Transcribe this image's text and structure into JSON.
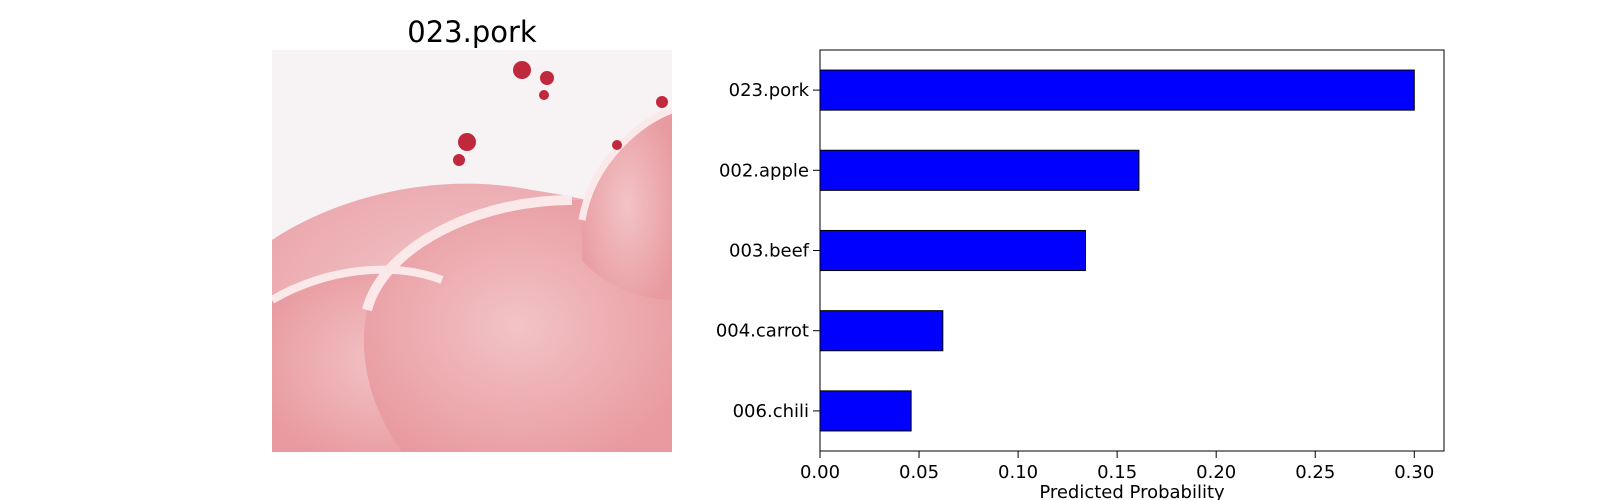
{
  "image_panel": {
    "title": "023.pork",
    "photo": {
      "kind": "food photo",
      "subject": "pork",
      "colors": {
        "background": "#f7f3f5",
        "meat_light": "#f2c3c6",
        "meat_mid": "#e89aa0",
        "fat": "#fbe9ea",
        "red_bits": "#c0283c",
        "board": "#b06a3e"
      }
    }
  },
  "chart_data": {
    "type": "bar",
    "orientation": "horizontal",
    "categories": [
      "023.pork",
      "002.apple",
      "003.beef",
      "004.carrot",
      "006.chili"
    ],
    "values": [
      0.3,
      0.161,
      0.134,
      0.062,
      0.046
    ],
    "title": "",
    "xlabel": "Predicted Probability",
    "ylabel": "",
    "xlim": [
      0,
      0.315
    ],
    "xticks": [
      0.0,
      0.05,
      0.1,
      0.15,
      0.2,
      0.25,
      0.3
    ],
    "xtick_labels": [
      "0.00",
      "0.05",
      "0.10",
      "0.15",
      "0.20",
      "0.25",
      "0.30"
    ],
    "bar_color": "#0000ff",
    "bar_edge_color": "#000000",
    "grid": false,
    "legend": "none"
  }
}
